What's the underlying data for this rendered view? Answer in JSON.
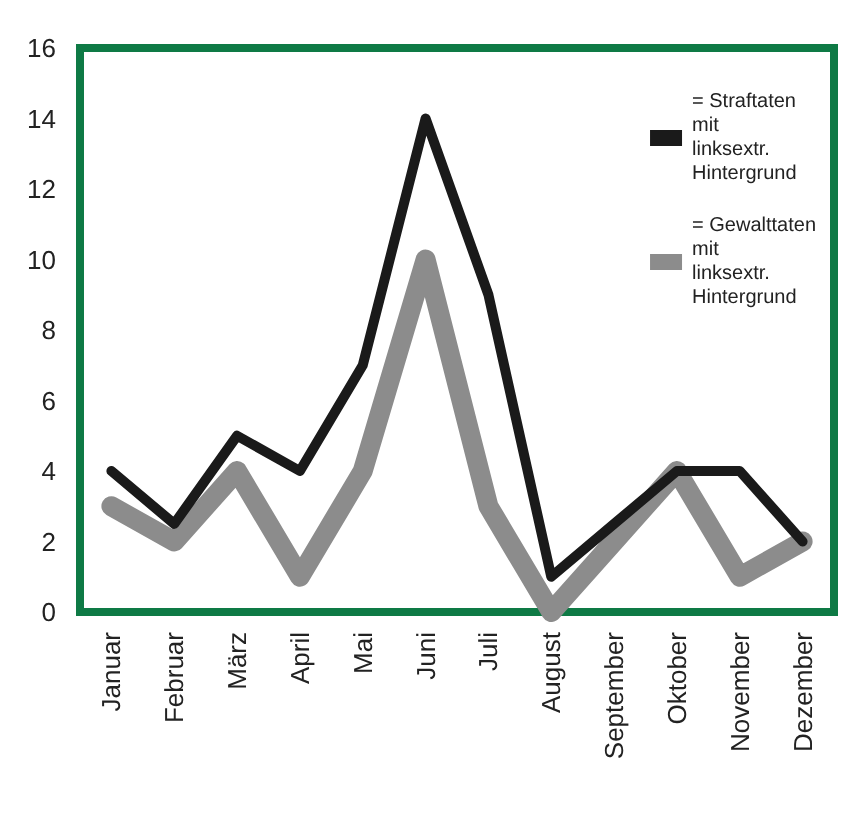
{
  "chart_data": {
    "type": "line",
    "categories": [
      "Januar",
      "Februar",
      "März",
      "April",
      "Mai",
      "Juni",
      "Juli",
      "August",
      "September",
      "Oktober",
      "November",
      "Dezember"
    ],
    "series": [
      {
        "name": "= Straftaten mit linksextr. Hintergrund",
        "color": "#1a1a1a",
        "values": [
          4,
          2.5,
          5,
          4,
          7,
          14,
          9,
          1,
          2.5,
          4,
          4,
          2
        ]
      },
      {
        "name": "= Gewalttaten mit linksextr. Hintergrund",
        "color": "#8c8c8c",
        "values": [
          3,
          2,
          4,
          1,
          4,
          10,
          3,
          0,
          2,
          4,
          1,
          2
        ]
      }
    ],
    "ylim": [
      0,
      16
    ],
    "yticks": [
      0,
      2,
      4,
      6,
      8,
      10,
      12,
      14,
      16
    ],
    "grid": false,
    "legend": "top right",
    "marker": "none",
    "line_style": "solid"
  }
}
